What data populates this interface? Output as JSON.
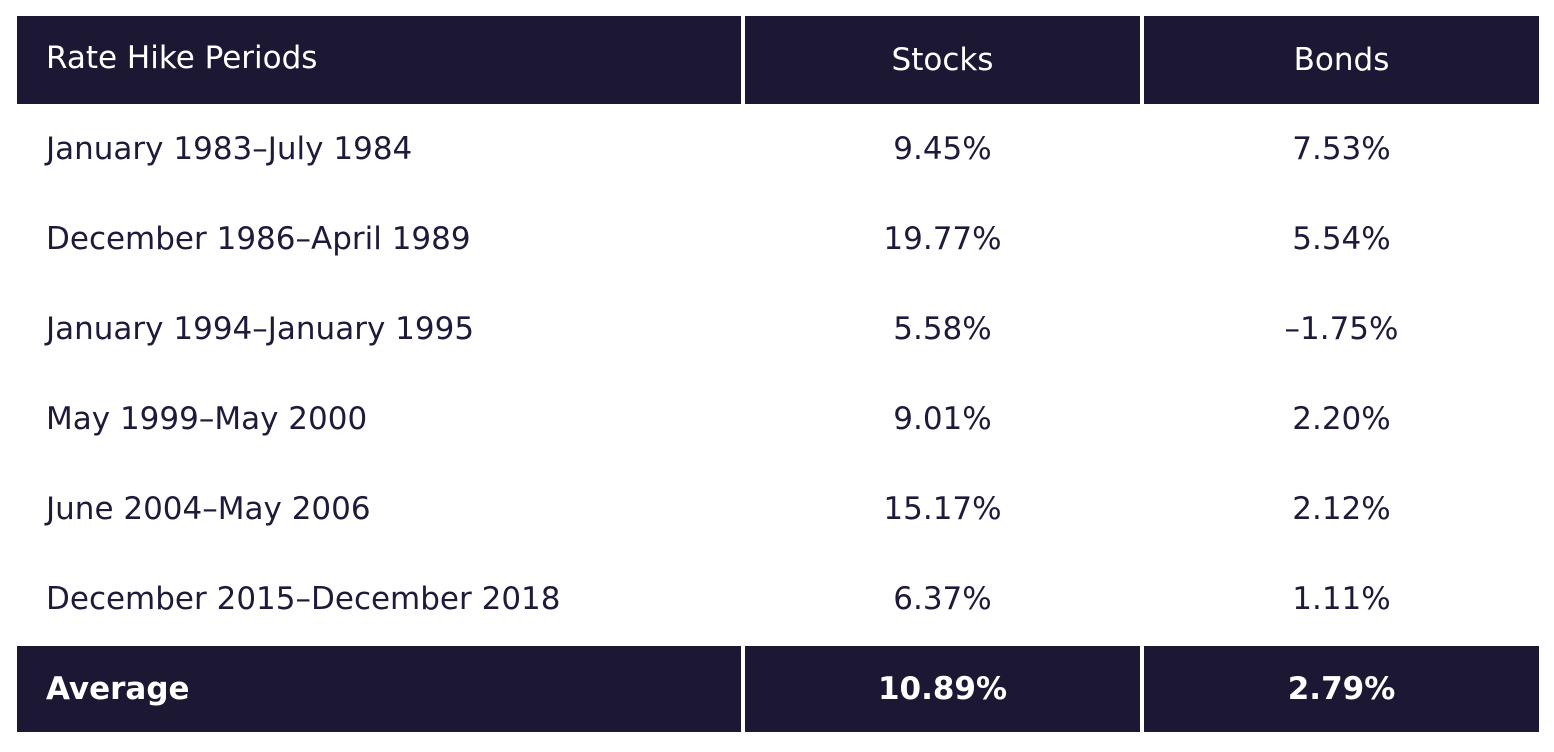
{
  "chart_data": {
    "type": "table",
    "columns": [
      "Rate Hike Periods",
      "Stocks",
      "Bonds"
    ],
    "rows": [
      {
        "period": "January 1983–July 1984",
        "stocks": "9.45%",
        "bonds": "7.53%"
      },
      {
        "period": "December 1986–April 1989",
        "stocks": "19.77%",
        "bonds": "5.54%"
      },
      {
        "period": "January 1994–January 1995",
        "stocks": "5.58%",
        "bonds": "–1.75%"
      },
      {
        "period": "May 1999–May 2000",
        "stocks": "9.01%",
        "bonds": "2.20%"
      },
      {
        "period": "June 2004–May 2006",
        "stocks": "15.17%",
        "bonds": "2.12%"
      },
      {
        "period": "December 2015–December 2018",
        "stocks": "6.37%",
        "bonds": "1.11%"
      }
    ],
    "footer": {
      "label": "Average",
      "stocks": "10.89%",
      "bonds": "2.79%"
    }
  },
  "colors": {
    "header_bg": "#1c1834",
    "header_text": "#ffffff",
    "body_text": "#1e1b3a"
  }
}
